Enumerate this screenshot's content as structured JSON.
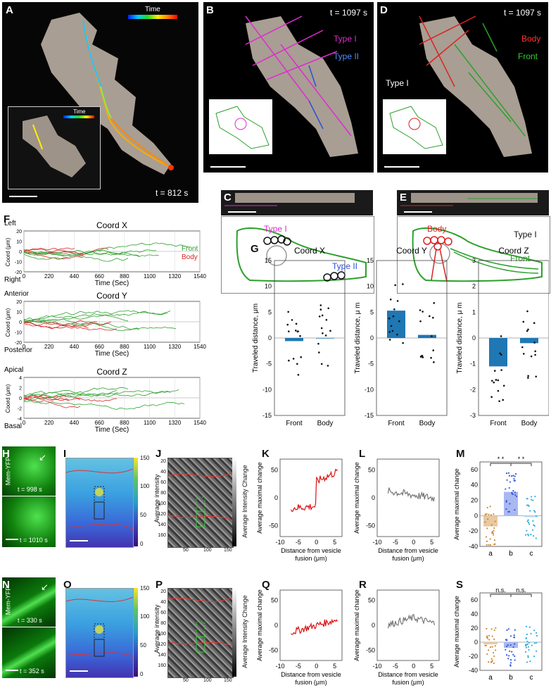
{
  "panels": {
    "A": {
      "label": "A",
      "time_label": "Time",
      "inset_time_label": "Time",
      "timestamp": "t = 812 s"
    },
    "B": {
      "label": "B",
      "timestamp": "t = 1097 s",
      "legend": [
        "Type I",
        "Type II"
      ]
    },
    "C": {
      "label": "C",
      "type1": "Type I",
      "type2": "Type II"
    },
    "D": {
      "label": "D",
      "timestamp": "t = 1097 s",
      "legend": [
        "Body",
        "Front"
      ],
      "type": "Type I"
    },
    "E": {
      "label": "E",
      "body": "Body",
      "front": "Front",
      "type": "Type I"
    },
    "F": {
      "label": "F"
    },
    "G": {
      "label": "G"
    },
    "H": {
      "label": "H",
      "stain": "Mem-YFP",
      "t1": "t = 998 s",
      "t2": "t = 1010 s"
    },
    "I": {
      "label": "I",
      "cbar_label": "Average intensity",
      "cbar_ticks": [
        "150",
        "100",
        "50",
        "0"
      ]
    },
    "J": {
      "label": "J",
      "cbar_label": "Average Intensity Change",
      "yticks": [
        "20",
        "40",
        "60",
        "80",
        "100",
        "120",
        "140",
        "160"
      ],
      "xticks": [
        "50",
        "100",
        "150"
      ]
    },
    "K": {
      "label": "K"
    },
    "L": {
      "label": "L"
    },
    "M": {
      "label": "M",
      "sig": [
        "* *",
        "* *"
      ]
    },
    "N": {
      "label": "N",
      "stain": "Mem-YFP",
      "t1": "t = 330 s",
      "t2": "t = 352 s"
    },
    "O": {
      "label": "O",
      "cbar_label": "Average intensity",
      "cbar_ticks": [
        "150",
        "100",
        "50",
        "0"
      ]
    },
    "P": {
      "label": "P",
      "cbar_label": "Average Intensity Change",
      "yticks": [
        "20",
        "40",
        "60",
        "80",
        "100",
        "120",
        "140",
        "160"
      ],
      "xticks": [
        "50",
        "100",
        "150"
      ]
    },
    "Q": {
      "label": "Q"
    },
    "R": {
      "label": "R"
    },
    "S": {
      "label": "S",
      "sig": [
        "n.s.",
        "n.s."
      ]
    }
  },
  "colors": {
    "front": "#2ca02c",
    "body": "#d62728",
    "type1": "#e02bd0",
    "type2": "#2b4fd8",
    "bar": "#1f77b4",
    "red_trace": "#dd1111",
    "gray_trace": "#777777",
    "cell": "#b0a59a"
  },
  "chart_data": [
    {
      "id": "F-X",
      "type": "line",
      "title": "Coord X",
      "xlabel": "Time (Sec)",
      "ylabel": "Coord (μm)",
      "top_label": "Left",
      "bottom_label": "Right",
      "xticks": [
        "0",
        "220",
        "440",
        "660",
        "880",
        "1100",
        "1320",
        "1540"
      ],
      "yticks": [
        "20",
        "10",
        "0",
        "-10",
        "-20"
      ],
      "xlim": [
        0,
        1540
      ],
      "ylim": [
        -20,
        20
      ],
      "series": [
        {
          "name": "Front"
        },
        {
          "name": "Body"
        }
      ]
    },
    {
      "id": "F-Y",
      "type": "line",
      "title": "Coord Y",
      "xlabel": "Time (Sec)",
      "ylabel": "Coord (μm)",
      "top_label": "Anterior",
      "bottom_label": "Posterior",
      "xticks": [
        "0",
        "220",
        "440",
        "660",
        "880",
        "1100",
        "1320",
        "1540"
      ],
      "yticks": [
        "20",
        "10",
        "0",
        "-10",
        "-20"
      ],
      "xlim": [
        0,
        1540
      ],
      "ylim": [
        -20,
        20
      ]
    },
    {
      "id": "F-Z",
      "type": "line",
      "title": "Coord Z",
      "xlabel": "Time (Sec)",
      "ylabel": "Coord (μm)",
      "top_label": "Apical",
      "bottom_label": "Basal",
      "xticks": [
        "0",
        "220",
        "440",
        "660",
        "880",
        "1100",
        "1320",
        "1540"
      ],
      "yticks": [
        "4",
        "2",
        "0",
        "-2",
        "-4"
      ],
      "xlim": [
        0,
        1540
      ],
      "ylim": [
        -4,
        4
      ]
    },
    {
      "id": "G-X",
      "type": "bar",
      "title": "Coord X",
      "ylabel": "Traveled distance, μm",
      "categories": [
        "Front",
        "Body"
      ],
      "values": [
        -0.6,
        -0.1
      ],
      "ylim": [
        -15,
        15
      ],
      "yticks": [
        "15",
        "10",
        "5",
        "0",
        "-5",
        "-10",
        "-15"
      ]
    },
    {
      "id": "G-Y",
      "type": "bar",
      "title": "Coord Y",
      "ylabel": "Traveled distance, μ m",
      "categories": [
        "Front",
        "Body"
      ],
      "values": [
        5.3,
        0.6
      ],
      "ylim": [
        -15,
        15
      ],
      "yticks": [
        "15",
        "10",
        "5",
        "0",
        "-5",
        "-10",
        "-15"
      ]
    },
    {
      "id": "G-Z",
      "type": "bar",
      "title": "Coord Z",
      "ylabel": "Traveled distance, μ m",
      "categories": [
        "Front",
        "Body"
      ],
      "values": [
        -1.1,
        -0.2
      ],
      "ylim": [
        -3,
        3
      ],
      "yticks": [
        "3",
        "2",
        "1",
        "0",
        "-1",
        "-2",
        "-3"
      ]
    },
    {
      "id": "K",
      "type": "line",
      "ylabel": "Average maximal change",
      "xlabel": "Distance from vesicle fusion (μm)",
      "xticks": [
        "-10",
        "-5",
        "0",
        "5"
      ],
      "yticks": [
        "50",
        "0",
        "-50"
      ],
      "ylim": [
        -70,
        70
      ]
    },
    {
      "id": "L",
      "type": "line",
      "ylabel": "Average maximal change",
      "xlabel": "Distance from vesicle fusion (μm)",
      "xticks": [
        "-10",
        "-5",
        "0",
        "5"
      ],
      "yticks": [
        "50",
        "0",
        "-50"
      ],
      "ylim": [
        -70,
        70
      ]
    },
    {
      "id": "M",
      "type": "bar",
      "ylabel": "Average maximal change",
      "categories": [
        "a",
        "b",
        "c"
      ],
      "values": [
        -14,
        31,
        -2
      ],
      "yticks": [
        "60",
        "40",
        "20",
        "0",
        "-20",
        "-40"
      ],
      "ylim": [
        -40,
        70
      ]
    },
    {
      "id": "Q",
      "type": "line",
      "ylabel": "Average maximal change",
      "xlabel": "Distance from vesicle fusion (μm)",
      "xticks": [
        "-10",
        "-5",
        "0",
        "5"
      ],
      "yticks": [
        "50",
        "0",
        "-50"
      ],
      "ylim": [
        -70,
        70
      ]
    },
    {
      "id": "R",
      "type": "line",
      "ylabel": "Average maximal change",
      "xlabel": "Distance from vesicle fusion (μm)",
      "xticks": [
        "-10",
        "-5",
        "0",
        "5"
      ],
      "yticks": [
        "50",
        "0",
        "-50"
      ],
      "ylim": [
        -70,
        70
      ]
    },
    {
      "id": "S",
      "type": "bar",
      "ylabel": "Average maximal change",
      "categories": [
        "a",
        "b",
        "c"
      ],
      "values": [
        -3,
        -8,
        -1
      ],
      "yticks": [
        "60",
        "40",
        "20",
        "0",
        "-20",
        "-40"
      ],
      "ylim": [
        -40,
        70
      ]
    }
  ]
}
